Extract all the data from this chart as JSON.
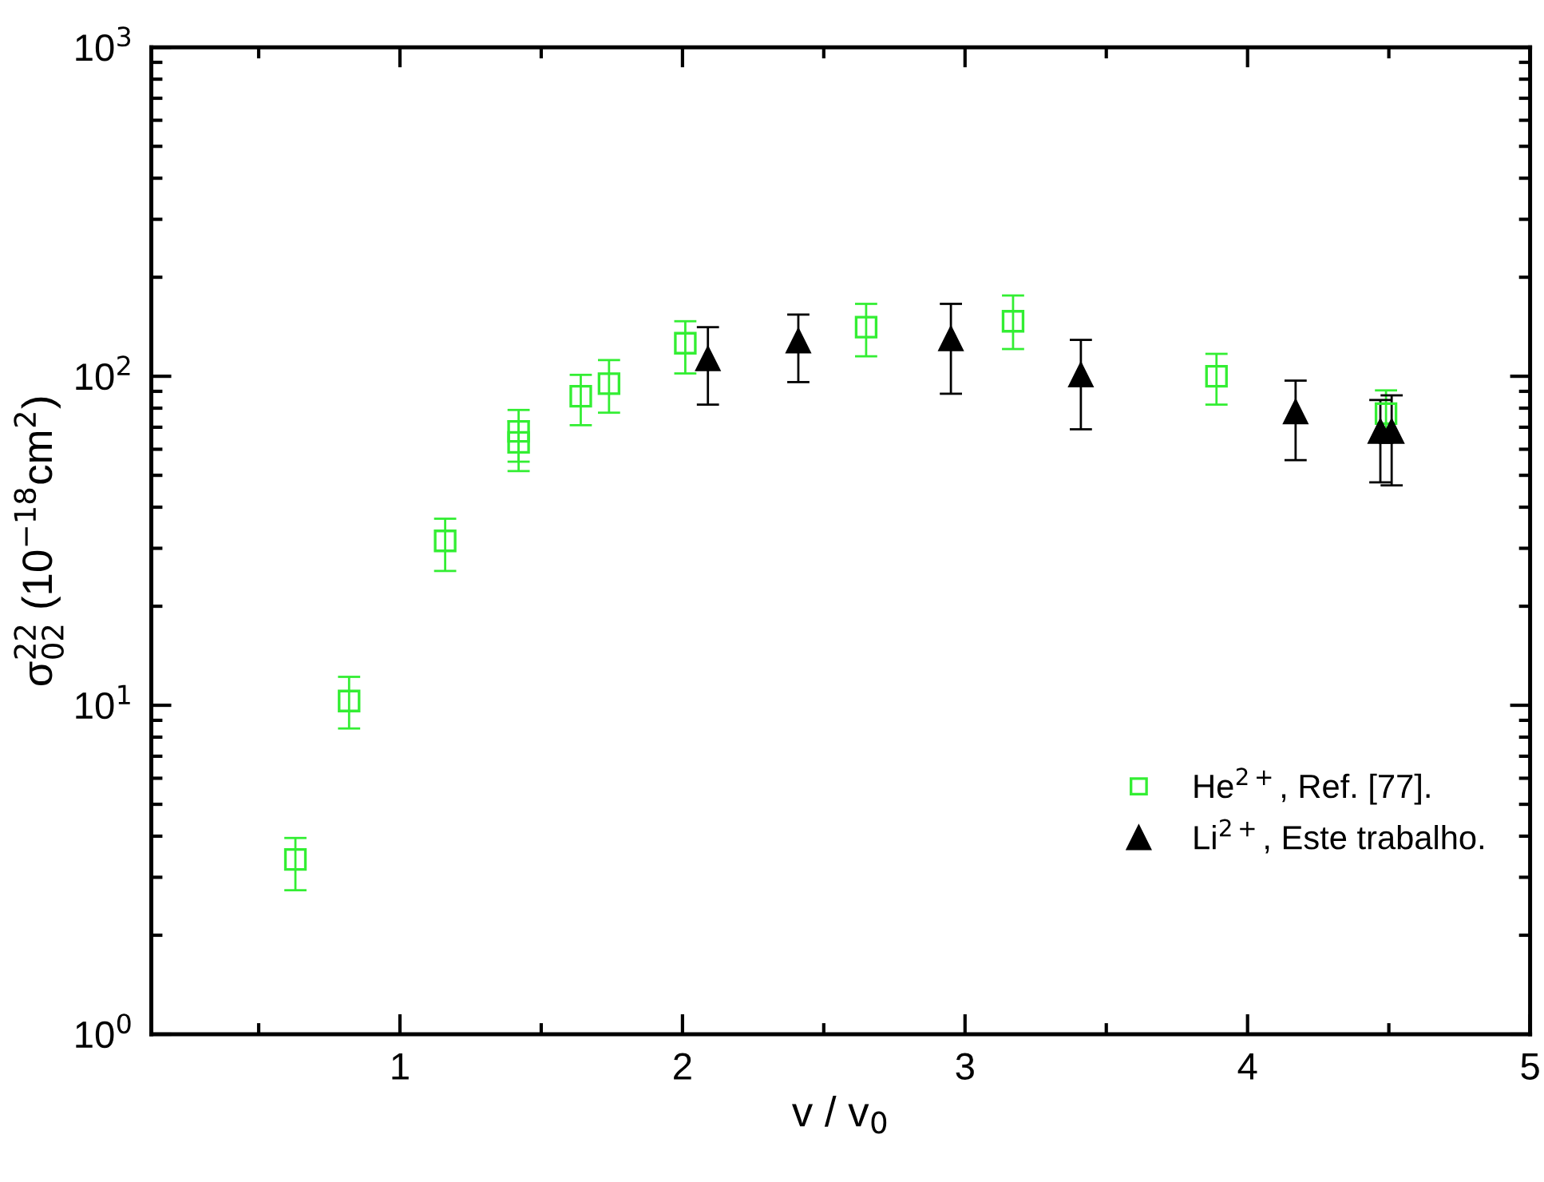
{
  "chart_data": {
    "type": "scatter",
    "xlabel": "v / v$_{0}$",
    "ylabel": "σ$^{22}$$_{02}$ (10$^{−18}$cm$^{2}$)",
    "log": "y",
    "xlim": [
      0.12,
      5
    ],
    "ylim": [
      1,
      1000
    ],
    "xticks": [
      1,
      2,
      3,
      4,
      5
    ],
    "yticks": [
      {
        "value": 1,
        "label": "10$^{0}$"
      },
      {
        "value": 10,
        "label": "10$^{1}$"
      },
      {
        "value": 100,
        "label": "10$^{2}$"
      },
      {
        "value": 1000,
        "label": "10$^{3}$"
      }
    ],
    "grid": false,
    "legend": "bottom right",
    "series": [
      {
        "name": "He$^{2+}$, Ref. [77].",
        "color": "#33ee33",
        "marker": "square",
        "x": [
          0.63,
          0.82,
          1.16,
          1.42,
          1.42,
          1.64,
          1.74,
          2.01,
          2.65,
          3.17,
          3.89,
          4.49
        ],
        "values": [
          3.4,
          10.3,
          31.6,
          68,
          63,
          87,
          95,
          126,
          141,
          147,
          100,
          77
        ],
        "errors": [
          [
            2.74,
            3.95
          ],
          [
            8.5,
            12.2
          ],
          [
            25.6,
            36.9
          ],
          [
            55,
            79
          ],
          [
            51.5,
            73
          ],
          [
            71,
            101
          ],
          [
            77.5,
            112
          ],
          [
            102,
            147
          ],
          [
            115,
            166
          ],
          [
            121,
            176
          ],
          [
            82,
            117
          ],
          [
            63.5,
            90.6
          ]
        ]
      },
      {
        "name": "Li$^{2+}$, Este trabalho.",
        "color": "#000000",
        "marker": "triangle",
        "x": [
          2.09,
          2.41,
          2.95,
          3.41,
          4.17,
          4.47,
          4.51
        ],
        "values": [
          113,
          128,
          130,
          101,
          78,
          68,
          68
        ],
        "errors": [
          [
            82,
            141
          ],
          [
            96,
            154
          ],
          [
            88.5,
            166
          ],
          [
            69,
            129
          ],
          [
            55.6,
            97
          ],
          [
            47.6,
            84.7
          ],
          [
            46.6,
            87.5
          ]
        ]
      }
    ]
  }
}
